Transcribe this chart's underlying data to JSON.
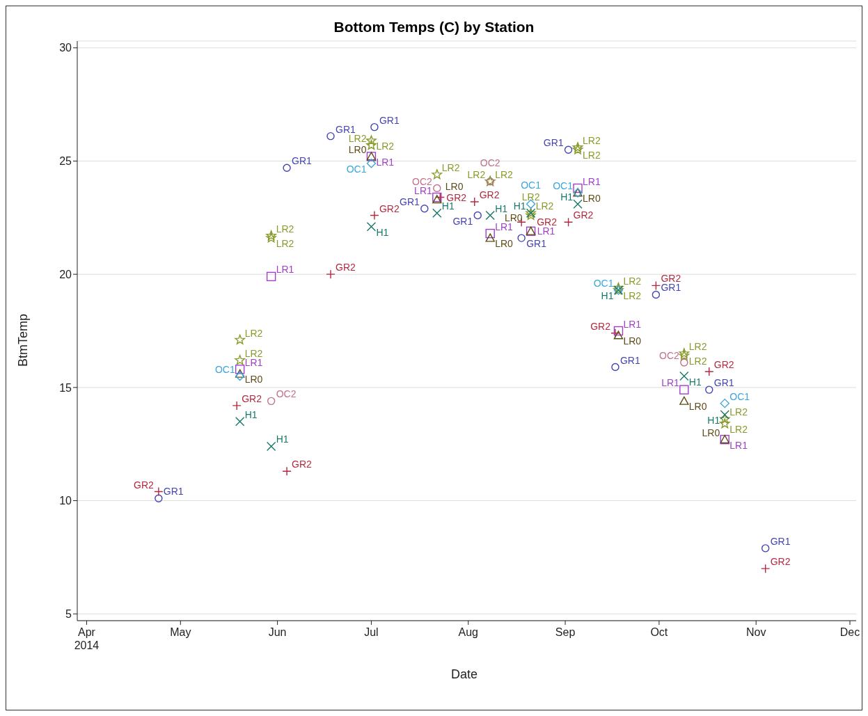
{
  "chart_data": {
    "type": "scatter",
    "title": "Bottom Temps (C) by Station",
    "xlabel": "Date",
    "ylabel": "BtmTemp",
    "xlim": [
      "2014-03-29",
      "2014-12-03"
    ],
    "xticks": [
      {
        "value": "2014-04-01",
        "label": "Apr 2014"
      },
      {
        "value": "2014-05-01",
        "label": "May"
      },
      {
        "value": "2014-06-01",
        "label": "Jun"
      },
      {
        "value": "2014-07-01",
        "label": "Jul"
      },
      {
        "value": "2014-08-01",
        "label": "Aug"
      },
      {
        "value": "2014-09-01",
        "label": "Sep"
      },
      {
        "value": "2014-10-01",
        "label": "Oct"
      },
      {
        "value": "2014-11-01",
        "label": "Nov"
      },
      {
        "value": "2014-12-01",
        "label": "Dec"
      }
    ],
    "ylim": [
      4.7,
      30.3
    ],
    "yticks": [
      5,
      10,
      15,
      20,
      25,
      30
    ],
    "grid": "y",
    "legend": false,
    "series": [
      {
        "name": "GR1",
        "color": "#4343b5",
        "marker": "circle",
        "x": [
          "2014-04-24",
          "2014-06-04",
          "2014-06-18",
          "2014-07-02",
          "2014-07-18",
          "2014-08-04",
          "2014-08-18",
          "2014-09-02",
          "2014-09-17",
          "2014-09-30",
          "2014-10-17",
          "2014-11-04"
        ],
        "values": [
          10.1,
          24.7,
          26.1,
          26.5,
          22.9,
          22.6,
          21.6,
          25.5,
          15.9,
          19.1,
          14.9,
          7.9
        ]
      },
      {
        "name": "GR2",
        "color": "#b5283f",
        "marker": "plus",
        "x": [
          "2014-04-24",
          "2014-05-19",
          "2014-06-04",
          "2014-06-18",
          "2014-07-02",
          "2014-07-23",
          "2014-08-03",
          "2014-08-18",
          "2014-09-02",
          "2014-09-17",
          "2014-09-30",
          "2014-10-17",
          "2014-11-04"
        ],
        "values": [
          10.4,
          14.2,
          11.3,
          20.0,
          22.6,
          23.4,
          23.2,
          22.3,
          22.3,
          17.4,
          19.5,
          15.7,
          7.0
        ]
      },
      {
        "name": "LR2",
        "color": "#8a9a2a",
        "marker": "star",
        "x": [
          "2014-05-20",
          "2014-05-20",
          "2014-05-30",
          "2014-05-30",
          "2014-07-01",
          "2014-07-01",
          "2014-07-22",
          "2014-08-08",
          "2014-08-08",
          "2014-08-21",
          "2014-08-21",
          "2014-09-05",
          "2014-09-05",
          "2014-09-18",
          "2014-09-18",
          "2014-10-09",
          "2014-10-09",
          "2014-10-22",
          "2014-10-22"
        ],
        "values": [
          17.1,
          16.2,
          21.7,
          21.6,
          25.9,
          25.7,
          24.4,
          24.1,
          24.1,
          22.7,
          22.6,
          25.6,
          25.5,
          19.4,
          19.3,
          16.5,
          16.4,
          13.6,
          13.4
        ]
      },
      {
        "name": "LR1",
        "color": "#a03fc8",
        "marker": "square",
        "x": [
          "2014-05-20",
          "2014-05-30",
          "2014-07-01",
          "2014-07-22",
          "2014-08-08",
          "2014-08-21",
          "2014-09-05",
          "2014-09-18",
          "2014-10-09",
          "2014-10-22"
        ],
        "values": [
          15.8,
          19.9,
          25.2,
          23.4,
          21.8,
          21.9,
          23.8,
          17.5,
          14.9,
          12.7
        ]
      },
      {
        "name": "LR0",
        "color": "#5e4a14",
        "marker": "triangle",
        "x": [
          "2014-05-20",
          "2014-07-01",
          "2014-07-22",
          "2014-08-08",
          "2014-08-21",
          "2014-09-05",
          "2014-09-18",
          "2014-10-09",
          "2014-10-22"
        ],
        "values": [
          15.6,
          25.2,
          23.3,
          21.6,
          21.9,
          23.6,
          17.3,
          14.4,
          12.7
        ]
      },
      {
        "name": "OC1",
        "color": "#3aa6dc",
        "marker": "diamond",
        "x": [
          "2014-05-20",
          "2014-07-01",
          "2014-08-21",
          "2014-09-05",
          "2014-09-18",
          "2014-10-22"
        ],
        "values": [
          15.5,
          24.9,
          23.1,
          23.6,
          19.3,
          14.3
        ]
      },
      {
        "name": "H1",
        "color": "#17786a",
        "marker": "cross",
        "x": [
          "2014-05-20",
          "2014-05-30",
          "2014-07-01",
          "2014-07-22",
          "2014-08-08",
          "2014-08-21",
          "2014-09-05",
          "2014-09-18",
          "2014-10-09",
          "2014-10-22"
        ],
        "values": [
          13.5,
          12.4,
          22.1,
          22.7,
          22.6,
          22.7,
          23.1,
          19.3,
          15.5,
          13.8
        ]
      },
      {
        "name": "OC2",
        "color": "#c0718c",
        "marker": "circle",
        "x": [
          "2014-05-30",
          "2014-07-22",
          "2014-08-08",
          "2014-10-09"
        ],
        "values": [
          14.4,
          23.8,
          24.1,
          16.1
        ]
      }
    ]
  }
}
